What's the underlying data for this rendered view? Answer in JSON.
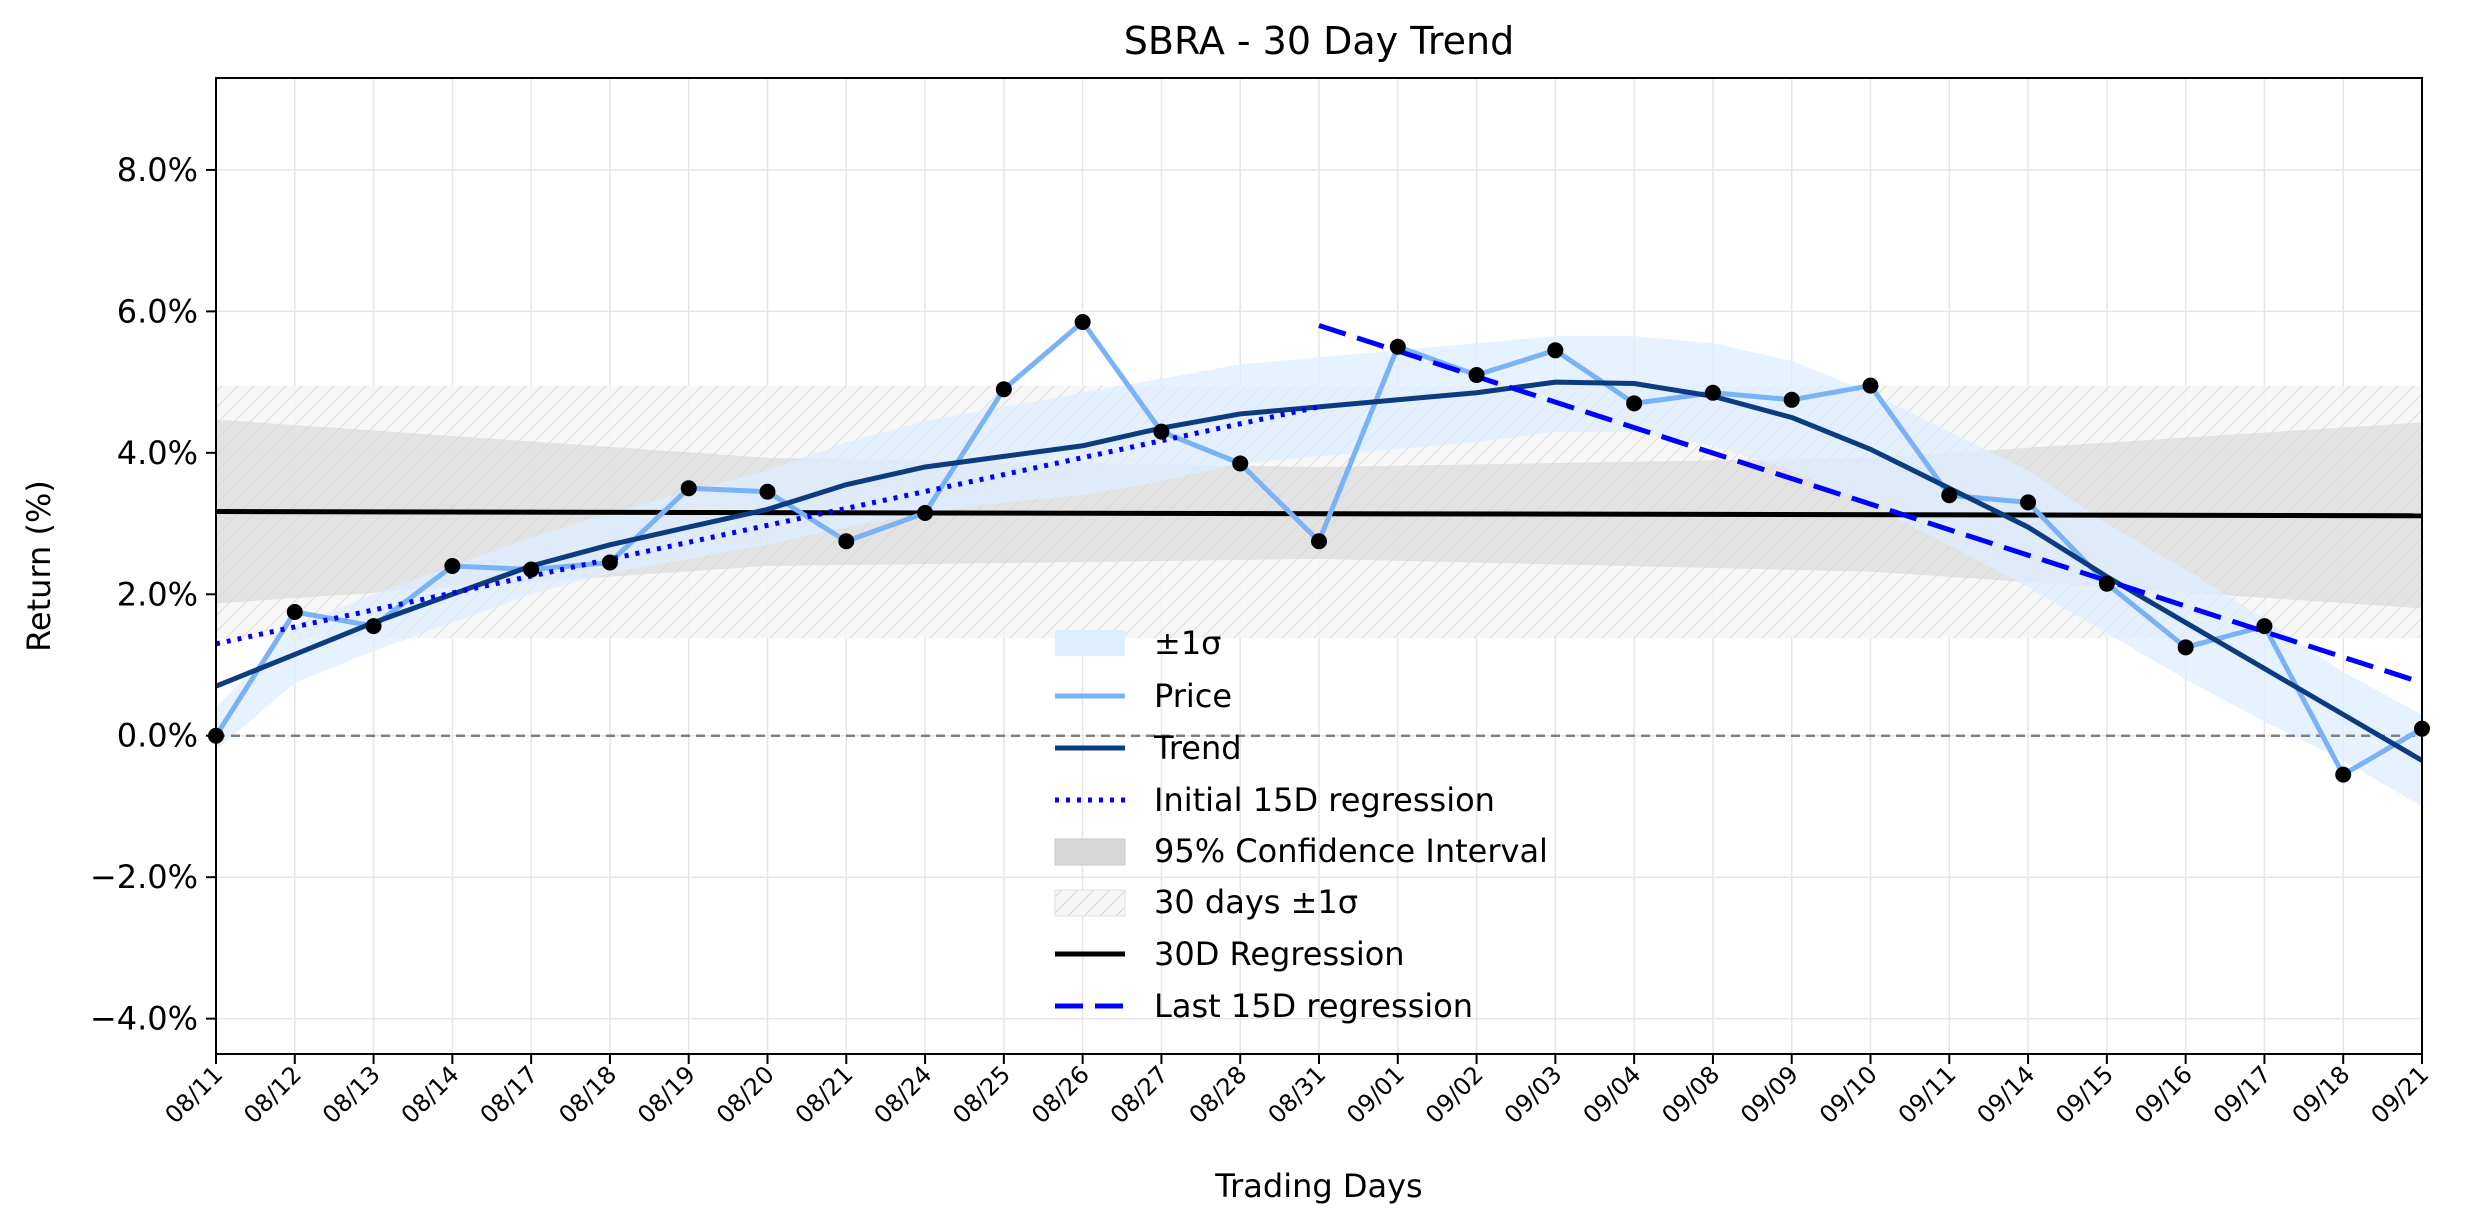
{
  "chart_data": {
    "type": "line",
    "title": "SBRA - 30 Day Trend",
    "xlabel": "Trading Days",
    "ylabel": "Return (%)",
    "categories": [
      "08/11",
      "08/12",
      "08/13",
      "08/14",
      "08/17",
      "08/18",
      "08/19",
      "08/20",
      "08/21",
      "08/24",
      "08/25",
      "08/26",
      "08/27",
      "08/28",
      "08/31",
      "09/01",
      "09/02",
      "09/03",
      "09/04",
      "09/08",
      "09/09",
      "09/10",
      "09/11",
      "09/14",
      "09/15",
      "09/16",
      "09/17",
      "09/18",
      "09/21"
    ],
    "ylim": [
      -4.5,
      9.3
    ],
    "yticks": [
      -4,
      -2,
      0,
      2,
      4,
      6,
      8
    ],
    "ytick_labels": [
      "−4.0%",
      "−2.0%",
      "0.0%",
      "2.0%",
      "4.0%",
      "6.0%",
      "8.0%"
    ],
    "grid": true,
    "legend_position": "lower-center",
    "colors": {
      "price": "#7ab3f5",
      "trend": "#0d3b80",
      "sigma_band": "#ddeeff",
      "initial_regression": "#0000ff",
      "last_regression": "#0000ff",
      "regression_30d": "#000000",
      "confidence": "#d8d8d8",
      "band_30d": "#efefef",
      "zero_line": "#808080",
      "markers": "#000000"
    },
    "series": [
      {
        "name": "Price",
        "values": [
          0.0,
          1.75,
          1.55,
          2.4,
          2.35,
          2.45,
          3.5,
          3.45,
          2.75,
          3.15,
          4.9,
          5.85,
          4.3,
          3.85,
          2.75,
          5.5,
          5.1,
          5.45,
          4.7,
          4.85,
          4.75,
          4.95,
          3.4,
          3.3,
          2.15,
          1.25,
          1.55,
          -0.55,
          0.1
        ]
      },
      {
        "name": "Trend",
        "values": [
          0.7,
          1.15,
          1.6,
          2.0,
          2.4,
          2.7,
          2.95,
          3.2,
          3.55,
          3.8,
          3.95,
          4.1,
          4.35,
          4.55,
          4.65,
          4.75,
          4.85,
          5.0,
          4.98,
          4.8,
          4.5,
          4.05,
          3.5,
          2.95,
          2.25,
          1.6,
          0.95,
          0.3,
          -0.35
        ]
      }
    ],
    "sigma_band": {
      "name": "±1σ",
      "upper": [
        0.4,
        1.55,
        2.0,
        2.4,
        2.8,
        3.15,
        3.45,
        3.75,
        4.15,
        4.45,
        4.65,
        4.85,
        5.05,
        5.25,
        5.35,
        5.45,
        5.55,
        5.65,
        5.65,
        5.55,
        5.3,
        4.85,
        4.3,
        3.75,
        3.0,
        2.35,
        1.65,
        0.9,
        0.3
      ],
      "lower": [
        -0.2,
        0.75,
        1.2,
        1.6,
        2.0,
        2.3,
        2.5,
        2.7,
        2.95,
        3.15,
        3.3,
        3.4,
        3.6,
        3.85,
        3.95,
        4.05,
        4.15,
        4.3,
        4.3,
        4.1,
        3.75,
        3.25,
        2.7,
        2.1,
        1.45,
        0.8,
        0.2,
        -0.35,
        -1.0
      ]
    },
    "initial_regression": {
      "name": "Initial 15D regression",
      "x_range": [
        0,
        14
      ],
      "y": [
        1.3,
        4.65
      ]
    },
    "last_regression": {
      "name": "Last 15D regression",
      "x_range": [
        14,
        28
      ],
      "y": [
        5.8,
        0.75
      ]
    },
    "regression_30d": {
      "name": "30D Regression",
      "x_range": [
        0,
        28
      ],
      "y": [
        3.17,
        3.11
      ]
    },
    "confidence_interval": {
      "name": "95% Confidence Interval",
      "x": [
        0,
        7,
        14,
        21,
        28
      ],
      "upper": [
        4.47,
        3.93,
        3.8,
        3.93,
        4.43
      ],
      "lower": [
        1.87,
        2.4,
        2.5,
        2.32,
        1.8
      ]
    },
    "band_30d": {
      "name": "30 days ±1σ",
      "upper": 4.95,
      "lower": 1.38
    },
    "zero_line": 0
  }
}
